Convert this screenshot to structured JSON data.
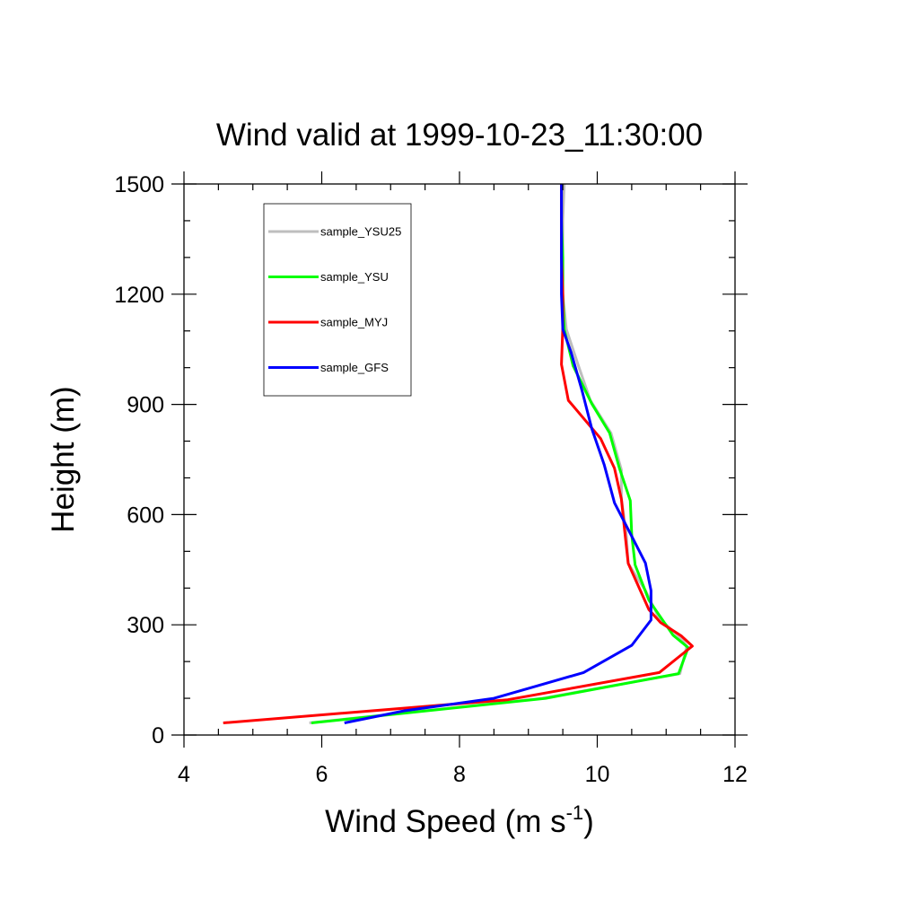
{
  "chart_data": {
    "type": "line",
    "title": "Wind valid at 1999-10-23_11:30:00",
    "xlabel": "Wind Speed (m s",
    "xlabel_sup": "-1",
    "xlabel_end": ")",
    "ylabel": "Height (m)",
    "xlim": [
      4,
      12
    ],
    "ylim": [
      0,
      1500
    ],
    "x_ticks": [
      4,
      6,
      8,
      10,
      12
    ],
    "y_ticks": [
      0,
      300,
      600,
      900,
      1200,
      1500
    ],
    "x_tick_labels": [
      "4",
      "6",
      "8",
      "10",
      "12"
    ],
    "y_tick_labels": [
      "0",
      "300",
      "600",
      "900",
      "1200",
      "1500"
    ],
    "legend_position": "top-left",
    "grid": false,
    "series": [
      {
        "name": "sample_YSU25",
        "color": "#bebebe",
        "points": [
          [
            5.82,
            33
          ],
          [
            9.2,
            100
          ],
          [
            11.2,
            167
          ],
          [
            11.3,
            242
          ],
          [
            11.2,
            266
          ],
          [
            10.9,
            317
          ],
          [
            10.7,
            393
          ],
          [
            10.45,
            467
          ],
          [
            10.42,
            552
          ],
          [
            10.35,
            643
          ],
          [
            10.35,
            722
          ],
          [
            10.2,
            822
          ],
          [
            9.9,
            911
          ],
          [
            9.72,
            1009
          ],
          [
            9.55,
            1105
          ],
          [
            9.5,
            1200
          ],
          [
            9.5,
            1300
          ],
          [
            9.5,
            1400
          ],
          [
            9.52,
            1500
          ]
        ]
      },
      {
        "name": "sample_YSU",
        "color": "#00ff00",
        "points": [
          [
            5.85,
            33
          ],
          [
            9.25,
            100
          ],
          [
            11.18,
            167
          ],
          [
            11.32,
            238
          ],
          [
            11.1,
            272
          ],
          [
            10.75,
            367
          ],
          [
            10.55,
            463
          ],
          [
            10.5,
            545
          ],
          [
            10.48,
            638
          ],
          [
            10.32,
            727
          ],
          [
            10.18,
            822
          ],
          [
            9.92,
            902
          ],
          [
            9.65,
            1005
          ],
          [
            9.52,
            1104
          ],
          [
            9.5,
            1200
          ],
          [
            9.5,
            1300
          ],
          [
            9.48,
            1400
          ],
          [
            9.48,
            1500
          ]
        ]
      },
      {
        "name": "sample_MYJ",
        "color": "#ff0000",
        "points": [
          [
            4.57,
            33
          ],
          [
            8.7,
            96
          ],
          [
            10.9,
            170
          ],
          [
            11.38,
            242
          ],
          [
            11.22,
            270
          ],
          [
            10.92,
            306
          ],
          [
            10.75,
            341
          ],
          [
            10.45,
            467
          ],
          [
            10.4,
            552
          ],
          [
            10.35,
            642
          ],
          [
            10.25,
            726
          ],
          [
            10.05,
            807
          ],
          [
            9.58,
            911
          ],
          [
            9.48,
            1009
          ],
          [
            9.5,
            1110
          ],
          [
            9.5,
            1200
          ],
          [
            9.48,
            1300
          ],
          [
            9.48,
            1400
          ],
          [
            9.48,
            1500
          ]
        ]
      },
      {
        "name": "sample_GFS",
        "color": "#0000ff",
        "points": [
          [
            6.33,
            33
          ],
          [
            7.2,
            66
          ],
          [
            8.5,
            100
          ],
          [
            9.8,
            170
          ],
          [
            10.5,
            244
          ],
          [
            10.78,
            313
          ],
          [
            10.78,
            393
          ],
          [
            10.7,
            468
          ],
          [
            10.52,
            534
          ],
          [
            10.25,
            632
          ],
          [
            10.1,
            736
          ],
          [
            9.92,
            834
          ],
          [
            9.78,
            937
          ],
          [
            9.62,
            1042
          ],
          [
            9.5,
            1105
          ],
          [
            9.48,
            1200
          ],
          [
            9.48,
            1300
          ],
          [
            9.48,
            1400
          ],
          [
            9.48,
            1500
          ]
        ]
      }
    ]
  }
}
